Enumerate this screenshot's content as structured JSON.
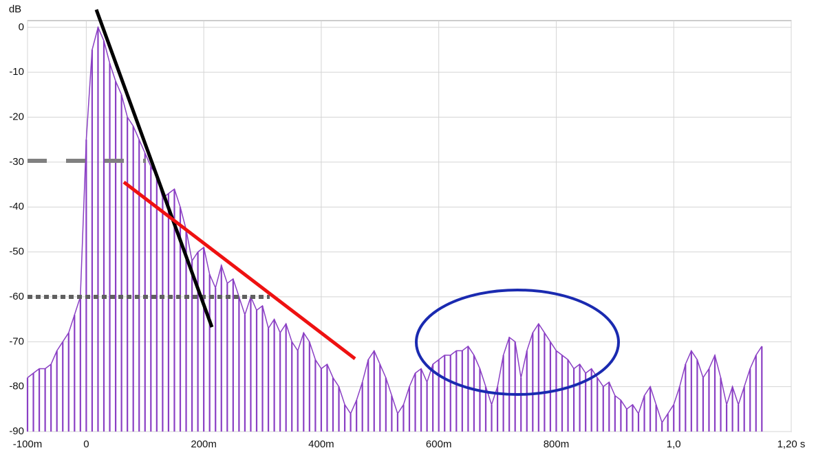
{
  "chart_data": {
    "type": "line",
    "y_label": "dB",
    "color": "#8a3fc4",
    "grid": true,
    "xlim": [
      -0.1,
      1.2
    ],
    "ylim": [
      -90,
      1.5
    ],
    "xticks": [
      {
        "value": -0.1,
        "label": "-100m"
      },
      0,
      {
        "value": 0.2,
        "label": "200m"
      },
      {
        "value": 0.4,
        "label": "400m"
      },
      {
        "value": 0.6,
        "label": "600m"
      },
      {
        "value": 0.8,
        "label": "800m"
      },
      {
        "value": 1.0,
        "label": "1,0"
      },
      {
        "value": 1.2,
        "label": "1,20 s"
      }
    ],
    "yticks": [
      0,
      -10,
      -20,
      -30,
      -40,
      -50,
      -60,
      -70,
      -80,
      -90
    ],
    "x": [
      -0.1,
      -0.09,
      -0.08,
      -0.07,
      -0.06,
      -0.05,
      -0.04,
      -0.03,
      -0.02,
      -0.01,
      0,
      0.01,
      0.02,
      0.03,
      0.04,
      0.05,
      0.06,
      0.07,
      0.08,
      0.09,
      0.1,
      0.11,
      0.12,
      0.13,
      0.14,
      0.15,
      0.16,
      0.17,
      0.18,
      0.19,
      0.2,
      0.21,
      0.22,
      0.23,
      0.24,
      0.25,
      0.26,
      0.27,
      0.28,
      0.29,
      0.3,
      0.31,
      0.32,
      0.33,
      0.34,
      0.35,
      0.36,
      0.37,
      0.38,
      0.39,
      0.4,
      0.41,
      0.42,
      0.43,
      0.44,
      0.45,
      0.46,
      0.47,
      0.48,
      0.49,
      0.5,
      0.51,
      0.52,
      0.53,
      0.54,
      0.55,
      0.56,
      0.57,
      0.58,
      0.59,
      0.6,
      0.61,
      0.62,
      0.63,
      0.64,
      0.65,
      0.66,
      0.67,
      0.68,
      0.69,
      0.7,
      0.71,
      0.72,
      0.73,
      0.74,
      0.75,
      0.76,
      0.77,
      0.78,
      0.79,
      0.8,
      0.81,
      0.82,
      0.83,
      0.84,
      0.85,
      0.86,
      0.87,
      0.88,
      0.89,
      0.9,
      0.91,
      0.92,
      0.93,
      0.94,
      0.95,
      0.96,
      0.97,
      0.98,
      0.99,
      1.0,
      1.01,
      1.02,
      1.03,
      1.04,
      1.05,
      1.06,
      1.07,
      1.08,
      1.09,
      1.1,
      1.11,
      1.12,
      1.13,
      1.14,
      1.15
    ],
    "values": [
      -78,
      -77,
      -76,
      -76,
      -75,
      -72,
      -70,
      -68,
      -64,
      -60,
      -25,
      -5,
      0,
      -3,
      -8,
      -12,
      -15,
      -20,
      -22,
      -25,
      -28,
      -31,
      -33,
      -38,
      -37,
      -36,
      -40,
      -45,
      -52,
      -50,
      -49,
      -55,
      -58,
      -53,
      -57,
      -56,
      -60,
      -64,
      -60,
      -63,
      -62,
      -67,
      -65,
      -68,
      -66,
      -70,
      -72,
      -68,
      -70,
      -74,
      -76,
      -75,
      -78,
      -80,
      -84,
      -86,
      -83,
      -79,
      -74,
      -72,
      -75,
      -78,
      -82,
      -86,
      -84,
      -80,
      -77,
      -76,
      -79,
      -75,
      -74,
      -73,
      -73,
      -72,
      -72,
      -71,
      -73,
      -76,
      -80,
      -84,
      -80,
      -73,
      -69,
      -70,
      -78,
      -72,
      -68,
      -66,
      -68,
      -70,
      -72,
      -73,
      -74,
      -76,
      -75,
      -77,
      -76,
      -78,
      -80,
      -79,
      -82,
      -83,
      -85,
      -84,
      -86,
      -82,
      -80,
      -84,
      -88,
      -86,
      -84,
      -80,
      -75,
      -72,
      -74,
      -78,
      -76,
      -73,
      -78,
      -84,
      -80,
      -84,
      -80,
      -76,
      -73,
      -71
    ]
  }
}
